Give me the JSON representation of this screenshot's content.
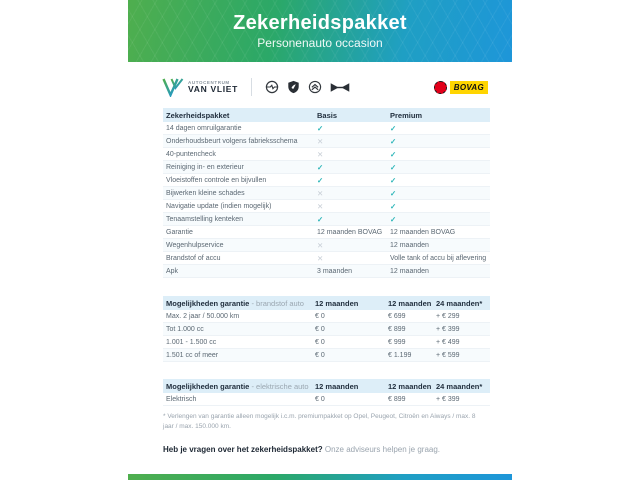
{
  "header": {
    "title": "Zekerheidspakket",
    "subtitle": "Personenauto occasion"
  },
  "logos": {
    "dealer_top": "AUTOCENTRUM",
    "dealer_bottom": "VAN VLIET",
    "brands": [
      "opel-logo",
      "peugeot-logo",
      "citroen-logo",
      "aiways-logo"
    ],
    "bovag_label": "BOVAG"
  },
  "package_table": {
    "headers": {
      "label": "Zekerheidspakket",
      "basis": "Basis",
      "premium": "Premium"
    },
    "rows": [
      {
        "label": "14 dagen omruilgarantie",
        "basis": "check",
        "premium": "check"
      },
      {
        "label": "Onderhoudsbeurt volgens fabrieksschema",
        "basis": "cross",
        "premium": "check"
      },
      {
        "label": "40-puntencheck",
        "basis": "cross",
        "premium": "check"
      },
      {
        "label": "Reiniging in- en exterieur",
        "basis": "check",
        "premium": "check"
      },
      {
        "label": "Vloeistoffen controle en bijvullen",
        "basis": "check",
        "premium": "check"
      },
      {
        "label": "Bijwerken kleine schades",
        "basis": "cross",
        "premium": "check"
      },
      {
        "label": "Navigatie update (indien mogelijk)",
        "basis": "cross",
        "premium": "check"
      },
      {
        "label": "Tenaamstelling kenteken",
        "basis": "check",
        "premium": "check"
      },
      {
        "label": "Garantie",
        "basis": "12 maanden BOVAG",
        "premium": "12 maanden BOVAG"
      },
      {
        "label": "Wegenhulpservice",
        "basis": "cross",
        "premium": "12 maanden"
      },
      {
        "label": "Brandstof of accu",
        "basis": "cross",
        "premium": "Volle tank of accu bij aflevering"
      },
      {
        "label": "Apk",
        "basis": "3 maanden",
        "premium": "12 maanden"
      }
    ]
  },
  "fuel_table": {
    "title_bold": "Mogelijkheden garantie",
    "title_light": " - brandstof auto",
    "col_headers": [
      "12 maanden",
      "12 maanden",
      "24 maanden*"
    ],
    "rows": [
      {
        "label": "Max. 2 jaar / 50.000 km",
        "c1": "€ 0",
        "c2": "€ 699",
        "c3": "+ € 299"
      },
      {
        "label": "Tot 1.000 cc",
        "c1": "€ 0",
        "c2": "€ 899",
        "c3": "+ € 399"
      },
      {
        "label": "1.001 - 1.500 cc",
        "c1": "€ 0",
        "c2": "€ 999",
        "c3": "+ € 499"
      },
      {
        "label": "1.501 cc of meer",
        "c1": "€ 0",
        "c2": "€ 1.199",
        "c3": "+ € 599"
      }
    ]
  },
  "electric_table": {
    "title_bold": "Mogelijkheden garantie",
    "title_light": " - elektrische auto",
    "col_headers": [
      "12 maanden",
      "12 maanden",
      "24 maanden*"
    ],
    "rows": [
      {
        "label": "Elektrisch",
        "c1": "€ 0",
        "c2": "€ 899",
        "c3": "+ € 399"
      }
    ]
  },
  "footnote": "* Verlengen van garantie alleen mogelijk i.c.m. premiumpakket op Opel, Peugeot, Citroën en Aiways / max. 8 jaar / max. 150.000 km.",
  "cta": {
    "bold": "Heb je vragen over het zekerheidspakket?",
    "light": " Onze adviseurs helpen je graag."
  },
  "colors": {
    "gradient_green": "#4fae4e",
    "gradient_blue": "#1e96d9",
    "check_teal": "#2cb5b8",
    "cross_gray": "#c7ced6",
    "table_header_bg": "#ddeef8",
    "bovag_red": "#e2001a",
    "bovag_yellow": "#ffd500"
  }
}
